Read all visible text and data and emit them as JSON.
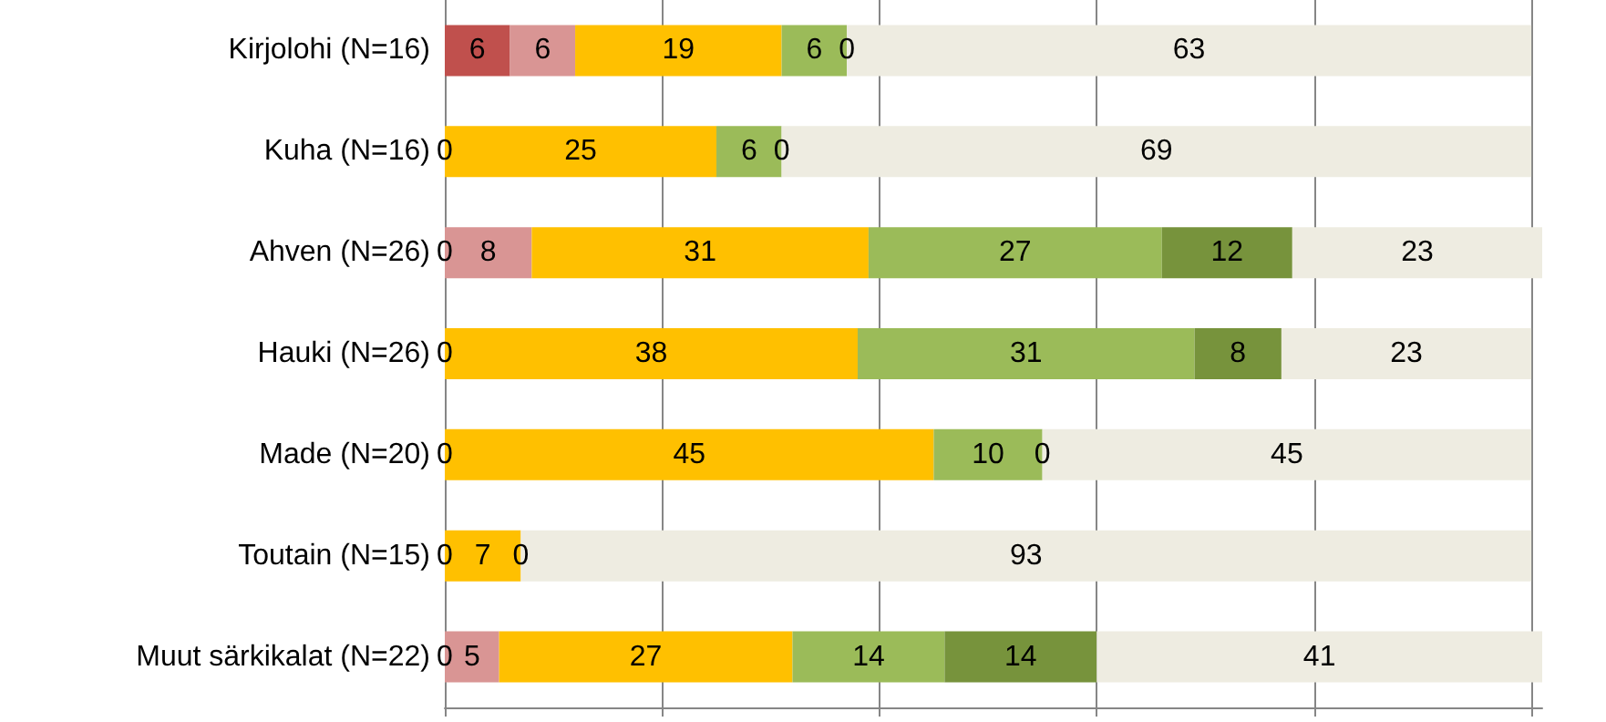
{
  "chart_data": {
    "type": "bar",
    "orientation": "horizontal",
    "stacked": true,
    "grid": "x",
    "tick_labels": "y",
    "categories": [
      "Kirjolohi (N=16)",
      "Kuha (N=16)",
      "Ahven (N=26)",
      "Hauki (N=26)",
      "Made (N=20)",
      "Toutain (N=15)",
      "Muut särkikalat (N=22)"
    ],
    "xlim": [
      0,
      101
    ],
    "xticks": [
      {
        "value": 0,
        "label": null
      },
      {
        "value": 20,
        "label": null
      },
      {
        "value": 40,
        "label": null
      },
      {
        "value": 60,
        "label": null
      },
      {
        "value": 80,
        "label": null
      },
      {
        "value": 100,
        "label": null
      }
    ],
    "series": [
      {
        "color": "#c0504d",
        "values": [
          6,
          0,
          0,
          0,
          0,
          0,
          0
        ],
        "value_labels": [
          "6",
          null,
          null,
          null,
          null,
          null,
          null
        ]
      },
      {
        "color": "#d99594",
        "values": [
          6,
          null,
          8,
          null,
          null,
          null,
          5
        ],
        "value_labels": [
          "6",
          null,
          "8",
          null,
          null,
          null,
          "5"
        ]
      },
      {
        "color": "#ffc000",
        "values": [
          19,
          25,
          31,
          38,
          45,
          7,
          27
        ],
        "value_labels": [
          "19",
          "25",
          "31",
          "38",
          "45",
          "7",
          "27"
        ]
      },
      {
        "color": "#9bbb59",
        "values": [
          6,
          6,
          27,
          31,
          10,
          0,
          14
        ],
        "value_labels": [
          "6",
          "6",
          "27",
          "31",
          "10",
          null,
          "14"
        ]
      },
      {
        "color": "#77933c",
        "values": [
          0,
          0,
          12,
          8,
          0,
          null,
          14
        ],
        "value_labels": [
          null,
          null,
          "12",
          "8",
          null,
          null,
          "14"
        ]
      },
      {
        "color": "#eeece1",
        "values": [
          63,
          69,
          23,
          23,
          45,
          93,
          41
        ],
        "value_labels": [
          "63",
          "69",
          "23",
          "23",
          "45",
          "93",
          "41"
        ]
      }
    ],
    "annotations": [
      {
        "text": "0",
        "x": 37,
        "y": "Kirjolohi (N=16)"
      },
      {
        "text": "0",
        "x": 0,
        "y": "Kuha (N=16)"
      },
      {
        "text": "0",
        "x": 31,
        "y": "Kuha (N=16)"
      },
      {
        "text": "0",
        "x": 0,
        "y": "Ahven (N=26)"
      },
      {
        "text": "0",
        "x": 0,
        "y": "Hauki (N=26)"
      },
      {
        "text": "0",
        "x": 0,
        "y": "Made (N=20)"
      },
      {
        "text": "0",
        "x": 55,
        "y": "Made (N=20)"
      },
      {
        "text": "0",
        "x": 0,
        "y": "Toutain (N=15)"
      },
      {
        "text": "0",
        "x": 7,
        "y": "Toutain (N=15)"
      },
      {
        "text": "0",
        "x": 0,
        "y": "Muut särkikalat (N=22)"
      }
    ]
  }
}
